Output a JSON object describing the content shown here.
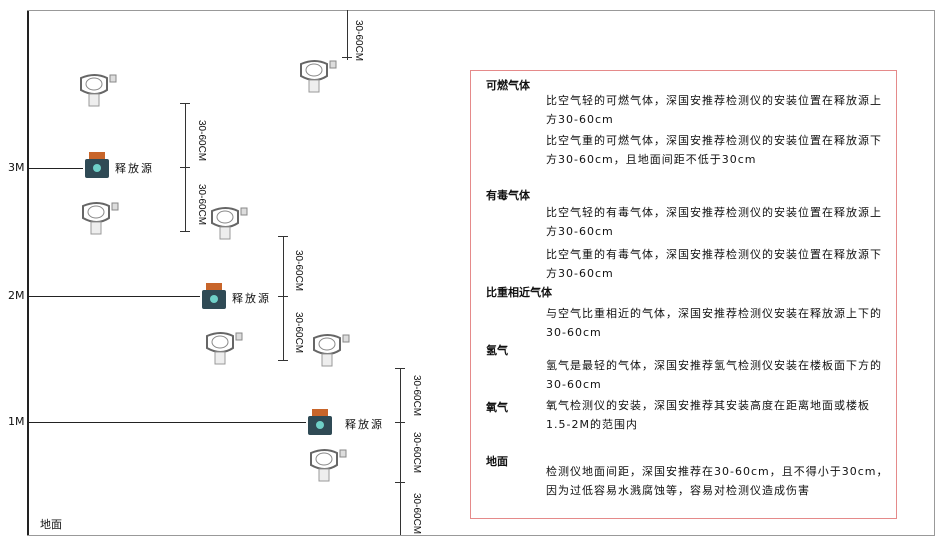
{
  "levels": [
    {
      "label": "3M"
    },
    {
      "label": "2M"
    },
    {
      "label": "1M"
    }
  ],
  "source_label": "释放源",
  "dimension_label": "30-60CM",
  "ground_label": "地面",
  "sections": [
    {
      "title": "可燃气体",
      "paragraphs": [
        "比空气轻的可燃气体，深国安推荐检测仪的安装位置在释放源上方30-60cm",
        "比空气重的可燃气体，深国安推荐检测仪的安装位置在释放源下方30-60cm，且地面间距不低于30cm"
      ]
    },
    {
      "title": "有毒气体",
      "paragraphs": [
        "比空气轻的有毒气体，深国安推荐检测仪的安装位置在释放源上方30-60cm",
        "比空气重的有毒气体，深国安推荐检测仪的安装位置在释放源下方30-60cm"
      ]
    },
    {
      "title": "比重相近气体",
      "paragraphs": [
        "与空气比重相近的气体，深国安推荐检测仪安装在释放源上下的30-60cm"
      ]
    },
    {
      "title": "氢气",
      "paragraphs": [
        "氢气是最轻的气体，深国安推荐氢气检测仪安装在楼板面下方的30-60cm"
      ]
    },
    {
      "title": "氧气",
      "paragraphs": [
        "氧气检测仪的安装，深国安推荐其安装高度在距离地面或楼板1.5-2M的范围内"
      ]
    },
    {
      "title": "地面",
      "paragraphs": [
        "检测仪地面间距，深国安推荐在30-60cm，且不得小于30cm，因为过低容易水溅腐蚀等，容易对检测仪造成伤害"
      ]
    }
  ],
  "colors": {
    "box_border": "#e58a8a",
    "source_body": "#2f4a55",
    "source_cap": "#c8652a"
  }
}
